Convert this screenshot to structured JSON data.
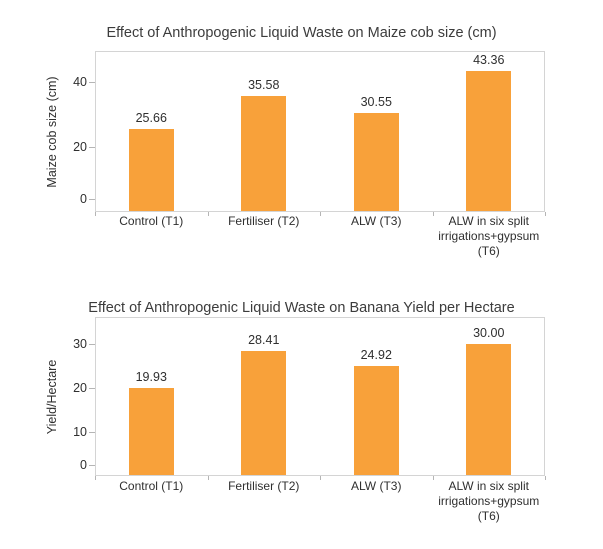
{
  "page": {
    "background_color": "#ffffff"
  },
  "styles": {
    "bar_color": "#F8A13A",
    "plot_border_color": "#D4D4D4",
    "tick_mark_color": "#B5B5B5",
    "axis_text_color": "#2F2F2F",
    "title_color": "#3C3C3C"
  },
  "chart_data": [
    {
      "type": "bar",
      "title": "Effect of Anthropogenic Liquid Waste on Maize cob size (cm)",
      "ylabel": "Maize cob size (cm)",
      "xlabel": "",
      "categories": [
        "Control (T1)",
        "Fertiliser (T2)",
        "ALW (T3)",
        "ALW in six split irrigations+gypsum (T6)"
      ],
      "values": [
        25.66,
        35.58,
        30.55,
        43.36
      ],
      "value_labels": [
        "25.66",
        "35.58",
        "30.55",
        "43.36"
      ],
      "yticks": [
        0,
        20,
        40
      ],
      "ylim": [
        0,
        49.5
      ],
      "grid": false,
      "legend": false,
      "data_labels": true,
      "bar_color": "#F8A13A"
    },
    {
      "type": "bar",
      "title": "Effect of Anthropogenic Liquid Waste on Banana Yield per Hectare",
      "ylabel": "Yield/Hectare",
      "xlabel": "",
      "categories": [
        "Control (T1)",
        "Fertiliser (T2)",
        "ALW (T3)",
        "ALW in six split irrigations+gypsum (T6)"
      ],
      "values": [
        19.93,
        28.41,
        24.92,
        30.0
      ],
      "value_labels": [
        "19.93",
        "28.41",
        "24.92",
        "30.00"
      ],
      "yticks": [
        0,
        10,
        20,
        30
      ],
      "ylim": [
        0,
        36.1
      ],
      "grid": false,
      "legend": false,
      "data_labels": true,
      "bar_color": "#F8A13A"
    }
  ]
}
